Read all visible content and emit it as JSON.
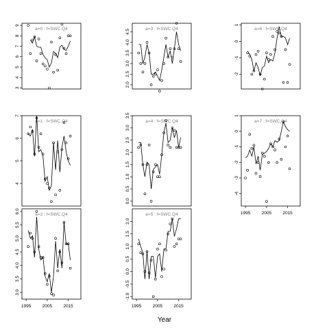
{
  "figure": {
    "xlabel": "Year"
  },
  "chart_data": [
    {
      "type": "line",
      "title": "a=0  :  f=SWC.Q4",
      "x_ticks": [
        1995,
        2005,
        2015
      ],
      "xlim": [
        1993,
        2021
      ],
      "ylim": [
        2.9,
        9.2
      ],
      "y_ticks": [
        3,
        4,
        5,
        6,
        7,
        8,
        9
      ],
      "show_x_ticks": false,
      "points": {
        "x": [
          1996,
          1997,
          1998,
          1999,
          2000,
          2001,
          2002,
          2003,
          2004,
          2005,
          2006,
          2007,
          2008,
          2009,
          2010,
          2011,
          2012,
          2013,
          2014,
          2015,
          2016
        ],
        "y": [
          9.0,
          6.3,
          7.6,
          7.9,
          5.6,
          7.7,
          6.3,
          5.3,
          5.1,
          4.8,
          3.0,
          7.4,
          4.5,
          6.2,
          4.7,
          7.8,
          9.1,
          6.8,
          6.3,
          8.0,
          8.0
        ]
      },
      "line": {
        "x": [
          1997,
          1998,
          1999,
          2000,
          2001,
          2002,
          2003,
          2004,
          2005,
          2006,
          2007,
          2008,
          2009,
          2010,
          2011,
          2012,
          2013,
          2014,
          2015,
          2016
        ],
        "y": [
          7.6,
          7.3,
          7.9,
          7.0,
          6.9,
          6.9,
          6.2,
          5.9,
          5.7,
          5.0,
          5.4,
          6.5,
          6.3,
          5.9,
          6.9,
          7.1,
          6.7,
          6.6,
          7.0,
          7.5
        ]
      }
    },
    {
      "type": "line",
      "title": "a=3  :  f=SWC.Q4",
      "x_ticks": [
        1995,
        2005,
        2015
      ],
      "xlim": [
        1993,
        2021
      ],
      "ylim": [
        1.8,
        4.9
      ],
      "y_ticks": [
        2.0,
        2.5,
        3.0,
        3.5,
        4.0,
        4.5
      ],
      "show_x_ticks": false,
      "points": {
        "x": [
          1996,
          1997,
          1998,
          1999,
          2000,
          2001,
          2002,
          2003,
          2004,
          2005,
          2006,
          2007,
          2008,
          2009,
          2010,
          2011,
          2012,
          2013,
          2014,
          2015,
          2016
        ],
        "y": [
          3.5,
          3.0,
          2.6,
          3.0,
          4.0,
          3.5,
          2.0,
          2.4,
          2.5,
          2.7,
          1.7,
          2.2,
          3.0,
          4.2,
          3.3,
          3.7,
          3.3,
          3.7,
          4.9,
          3.7,
          3.1
        ]
      },
      "line": {
        "x": [
          1996,
          1997,
          1998,
          1999,
          2000,
          2001,
          2002,
          2003,
          2004,
          2005,
          2006,
          2007,
          2008,
          2009,
          2010,
          2011,
          2012,
          2013,
          2014,
          2015,
          2016
        ],
        "y": [
          3.9,
          3.9,
          3.0,
          3.3,
          3.9,
          3.5,
          2.5,
          2.5,
          2.6,
          2.4,
          2.2,
          2.7,
          3.3,
          3.9,
          3.3,
          3.6,
          3.0,
          3.7,
          4.5,
          3.9,
          3.6
        ]
      }
    },
    {
      "type": "line",
      "title": "a=6  :  f=SWC.Q4",
      "x_ticks": [
        1995,
        2005,
        2015
      ],
      "xlim": [
        1993,
        2021
      ],
      "ylim": [
        -2.9,
        1.1
      ],
      "y_ticks": [
        -2,
        -1,
        0,
        1
      ],
      "show_x_ticks": false,
      "points": {
        "x": [
          1996,
          1997,
          1998,
          1999,
          2000,
          2001,
          2002,
          2003,
          2004,
          2005,
          2006,
          2007,
          2008,
          2009,
          2010,
          2011,
          2012,
          2013,
          2014,
          2015,
          2016
        ],
        "y": [
          -0.7,
          -0.9,
          -2.0,
          -1.8,
          -0.8,
          -0.6,
          -2.0,
          -2.9,
          -2.3,
          -0.7,
          -1.1,
          -0.8,
          0.3,
          -0.5,
          0.6,
          0.5,
          0.3,
          -2.5,
          -0.5,
          -2.5,
          -1.4
        ]
      },
      "line": {
        "x": [
          1996,
          1997,
          1998,
          1999,
          2000,
          2001,
          2002,
          2003,
          2004,
          2005,
          2006,
          2007,
          2008,
          2009,
          2010,
          2011,
          2012,
          2013,
          2014,
          2015,
          2016
        ],
        "y": [
          -0.6,
          -0.8,
          -1.1,
          -1.8,
          -1.3,
          -1.6,
          -2.1,
          -1.6,
          -1.5,
          -0.9,
          -1.3,
          -1.1,
          -1.2,
          -0.7,
          0.2,
          0.9,
          0.3,
          0.3,
          0.2,
          -0.2,
          0.2
        ]
      }
    },
    {
      "type": "line",
      "title": "a=1  :  f=SWC.Q4",
      "x_ticks": [
        1995,
        2005,
        2015
      ],
      "xlim": [
        1993,
        2021
      ],
      "ylim": [
        3.0,
        7.0
      ],
      "y_ticks": [
        4,
        5,
        6,
        7
      ],
      "show_x_ticks": false,
      "points": {
        "x": [
          1996,
          1997,
          1998,
          1999,
          2000,
          2001,
          2002,
          2003,
          2004,
          2005,
          2006,
          2007,
          2008,
          2009,
          2010,
          2011,
          2012,
          2013,
          2014,
          2015,
          2016
        ],
        "y": [
          6.2,
          6.5,
          6.3,
          5.3,
          6.9,
          5.6,
          6.2,
          5.3,
          4.2,
          4.0,
          3.8,
          3.2,
          5.8,
          3.5,
          5.4,
          3.7,
          5.5,
          6.7,
          5.8,
          5.1,
          6.1
        ]
      },
      "line": {
        "x": [
          1996,
          1997,
          1998,
          1999,
          2000,
          2001,
          2002,
          2003,
          2004,
          2005,
          2006,
          2007,
          2008,
          2009,
          2010,
          2011,
          2012,
          2013,
          2014,
          2015,
          2016
        ],
        "y": [
          6.2,
          6.1,
          6.4,
          5.2,
          7.0,
          5.4,
          5.5,
          5.2,
          4.1,
          4.3,
          3.7,
          3.9,
          5.8,
          4.6,
          5.9,
          4.5,
          5.6,
          6.1,
          5.4,
          5.0,
          4.8
        ]
      }
    },
    {
      "type": "line",
      "title": "a=4  :  f=SWC.Q4",
      "x_ticks": [
        1995,
        2005,
        2015
      ],
      "xlim": [
        1993,
        2021
      ],
      "ylim": [
        -0.2,
        3.5
      ],
      "y_ticks": [
        0.0,
        0.5,
        1.0,
        1.5,
        2.0,
        2.5,
        3.0,
        3.5
      ],
      "show_x_ticks": false,
      "points": {
        "x": [
          1996,
          1997,
          1998,
          1999,
          2000,
          2001,
          2002,
          2003,
          2004,
          2005,
          2006,
          2007,
          2008,
          2009,
          2010,
          2011,
          2012,
          2013,
          2014,
          2015,
          2016
        ],
        "y": [
          2.2,
          2.3,
          1.5,
          0.3,
          1.5,
          2.3,
          0.0,
          1.2,
          1.5,
          1.0,
          1.0,
          1.9,
          2.8,
          3.3,
          2.3,
          2.2,
          3.0,
          2.9,
          2.2,
          2.2,
          2.2
        ]
      },
      "line": {
        "x": [
          1996,
          1997,
          1998,
          1999,
          2000,
          2001,
          2002,
          2003,
          2004,
          2005,
          2006,
          2007,
          2008,
          2009,
          2010,
          2011,
          2012,
          2013,
          2014,
          2015,
          2016
        ],
        "y": [
          2.4,
          2.4,
          1.5,
          1.0,
          1.6,
          1.5,
          0.5,
          1.3,
          1.4,
          1.5,
          1.1,
          1.9,
          2.8,
          3.2,
          2.4,
          2.5,
          3.0,
          2.6,
          2.9,
          2.2,
          2.6
        ]
      }
    },
    {
      "type": "line",
      "title": "a=7  :  f=SWC.Q4",
      "x_ticks": [
        1995,
        2005,
        2015
      ],
      "xlim": [
        1993,
        2021
      ],
      "ylim": [
        -4.8,
        1.0
      ],
      "y_ticks": [
        -4,
        -3,
        -2,
        -1,
        0,
        1
      ],
      "show_x_ticks": true,
      "points": {
        "x": [
          1995,
          1996,
          1997,
          1998,
          1999,
          2000,
          2001,
          2002,
          2003,
          2004,
          2005,
          2006,
          2007,
          2008,
          2009,
          2010,
          2011,
          2012,
          2013,
          2014,
          2015,
          2016
        ],
        "y": [
          -3.0,
          -2.5,
          -0.2,
          -1.1,
          -0.9,
          -2.7,
          -2.0,
          -2.9,
          -1.4,
          -1.6,
          -4.5,
          -2.0,
          -0.8,
          -1.0,
          -1.2,
          -2.0,
          -0.5,
          -1.8,
          0.6,
          -1.0,
          -0.3,
          -2.4
        ]
      },
      "line": {
        "x": [
          1995,
          1996,
          1997,
          1998,
          1999,
          2000,
          2001,
          2002,
          2003,
          2004,
          2005,
          2006,
          2007,
          2008,
          2009,
          2010,
          2011,
          2012,
          2013,
          2014,
          2015,
          2016
        ],
        "y": [
          -1.7,
          -1.6,
          -1.2,
          -1.6,
          -1.0,
          -2.1,
          -1.6,
          -2.5,
          -1.5,
          -1.4,
          -1.3,
          -1.1,
          -0.8,
          -1.0,
          -0.6,
          -0.7,
          -0.6,
          0.0,
          0.6,
          0.3,
          0.1,
          0.0
        ]
      }
    },
    {
      "type": "line",
      "title": "a=2  :  f=SWC.Q4",
      "x_ticks": [
        1995,
        2005,
        2015
      ],
      "xlim": [
        1993,
        2021
      ],
      "ylim": [
        2.75,
        6.1
      ],
      "y_ticks": [
        3.0,
        3.5,
        4.0,
        4.5,
        5.0,
        5.5,
        6.0
      ],
      "show_x_ticks": true,
      "points": {
        "x": [
          1996,
          1997,
          1998,
          1999,
          2000,
          2001,
          2002,
          2003,
          2004,
          2005,
          2006,
          2007,
          2008,
          2009,
          2010,
          2011,
          2012,
          2013,
          2014,
          2015,
          2016
        ],
        "y": [
          4.7,
          5.2,
          5.0,
          4.5,
          6.0,
          4.7,
          4.3,
          4.3,
          3.7,
          3.3,
          3.6,
          2.95,
          2.9,
          5.0,
          3.8,
          4.5,
          4.1,
          5.6,
          4.8,
          4.8,
          3.9
        ]
      },
      "line": {
        "x": [
          1996,
          1997,
          1998,
          1999,
          2000,
          2001,
          2002,
          2003,
          2004,
          2005,
          2006,
          2007,
          2008,
          2009,
          2010,
          2011,
          2012,
          2013,
          2014,
          2015,
          2016
        ],
        "y": [
          5.3,
          5.0,
          5.1,
          4.3,
          5.8,
          4.6,
          4.2,
          4.3,
          3.6,
          3.4,
          3.7,
          3.0,
          3.6,
          4.9,
          3.9,
          4.6,
          3.9,
          5.6,
          4.8,
          4.8,
          4.2
        ]
      }
    },
    {
      "type": "line",
      "title": "a=5  :  f=SWC.Q4",
      "x_ticks": [
        1995,
        2005,
        2015
      ],
      "xlim": [
        1993,
        2021
      ],
      "ylim": [
        -1.1,
        2.5
      ],
      "y_ticks": [
        -1.0,
        -0.5,
        0.0,
        0.5,
        1.0,
        1.5,
        2.0
      ],
      "show_x_ticks": true,
      "points": {
        "x": [
          1996,
          1997,
          1998,
          1999,
          2000,
          2001,
          2002,
          2003,
          2004,
          2005,
          2006,
          2007,
          2008,
          2009,
          2010,
          2011,
          2012,
          2013,
          2014,
          2015,
          2016
        ],
        "y": [
          1.1,
          0.75,
          0.7,
          0.0,
          0.8,
          -0.05,
          0.45,
          -1.0,
          -0.3,
          0.9,
          1.1,
          -0.2,
          0.1,
          0.85,
          1.5,
          1.9,
          2.1,
          1.0,
          1.1,
          1.3,
          1.3
        ]
      },
      "line": {
        "x": [
          1996,
          1997,
          1998,
          1999,
          2000,
          2001,
          2002,
          2003,
          2004,
          2005,
          2006,
          2007,
          2008,
          2009,
          2010,
          2011,
          2012,
          2013,
          2014,
          2015,
          2016
        ],
        "y": [
          1.3,
          1.0,
          0.75,
          -0.3,
          0.8,
          -0.3,
          0.6,
          0.6,
          -0.25,
          0.6,
          0.7,
          0.0,
          0.9,
          0.9,
          1.6,
          1.6,
          2.1,
          1.4,
          1.7,
          2.1,
          2.1
        ]
      }
    }
  ]
}
